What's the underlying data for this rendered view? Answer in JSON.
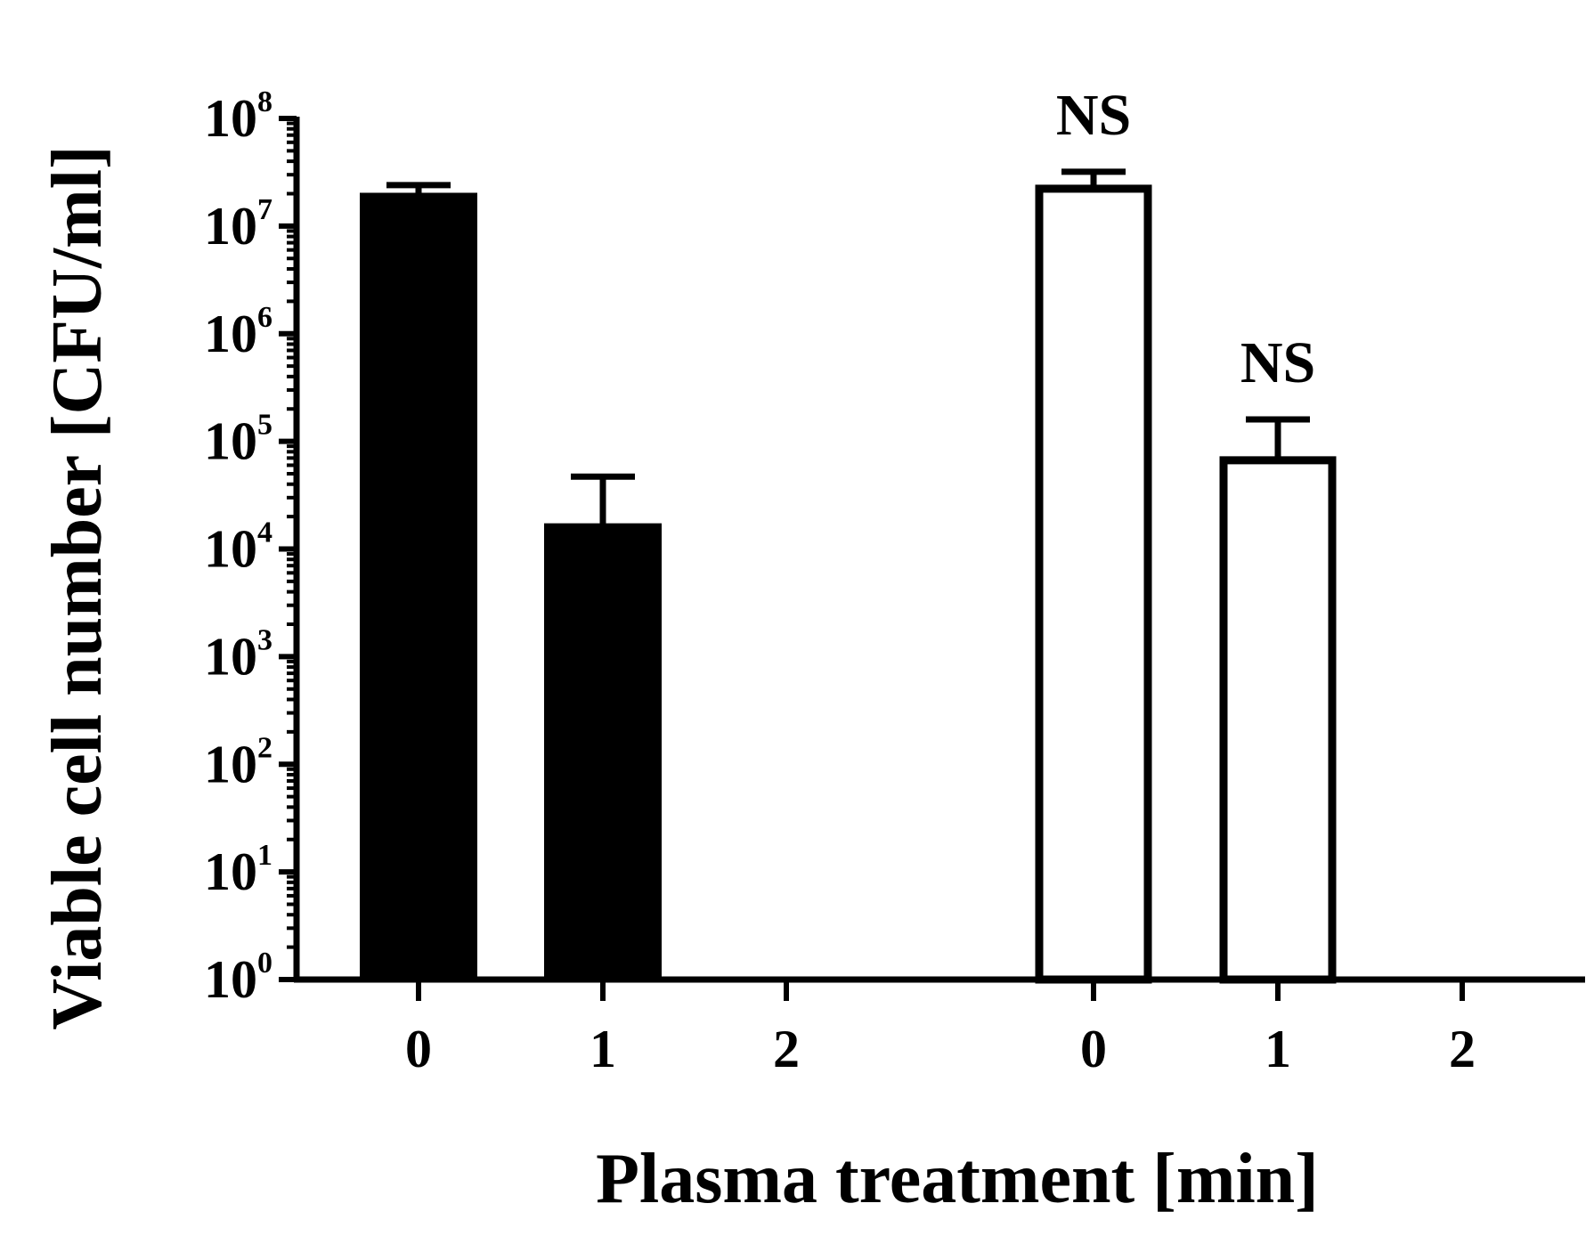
{
  "chart_data": {
    "type": "bar",
    "title": "",
    "xlabel": "Plasma treatment [min]",
    "ylabel": "Viable cell number [CFU/ml]",
    "yscale": "log",
    "ylim": [
      1,
      100000000
    ],
    "ytick_base": "10",
    "ytick_exponents": [
      "0",
      "1",
      "2",
      "3",
      "4",
      "5",
      "6",
      "7",
      "8"
    ],
    "categories": [
      "0",
      "1",
      "2",
      "0",
      "1",
      "2"
    ],
    "values": [
      20000000,
      17000,
      1,
      24000000,
      72000,
      1
    ],
    "error_upper": [
      24000000,
      47000,
      null,
      32000000,
      160000,
      null
    ],
    "fills": [
      "filled",
      "filled",
      "filled",
      "open",
      "open",
      "open"
    ],
    "annotations": [
      "",
      "",
      "",
      "NS",
      "NS",
      ""
    ],
    "colors": {
      "filled": "#000000",
      "open": "#ffffff",
      "stroke": "#000000"
    },
    "grid": false,
    "legend": "none"
  }
}
